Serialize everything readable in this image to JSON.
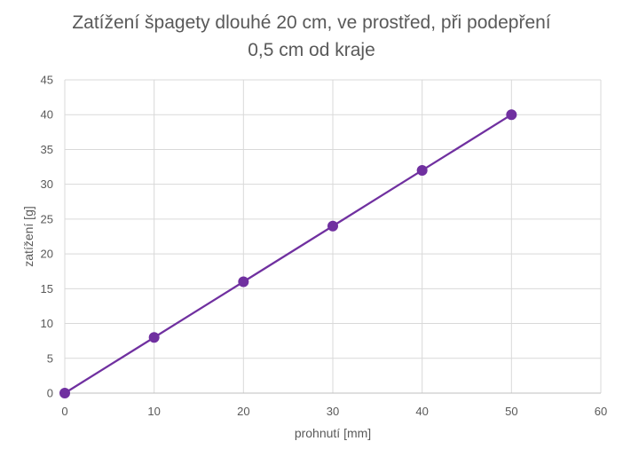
{
  "chart_data": {
    "type": "line",
    "title_lines": [
      "Zatížení špagety dlouhé 20 cm, ve prostřed, při podepření",
      "0,5 cm od kraje"
    ],
    "xlabel": "prohnutí [mm]",
    "ylabel": "zatížení [g]",
    "xlim": [
      0,
      60
    ],
    "ylim": [
      0,
      45
    ],
    "x_ticks": [
      0,
      10,
      20,
      30,
      40,
      50,
      60
    ],
    "y_ticks": [
      0,
      5,
      10,
      15,
      20,
      25,
      30,
      35,
      40,
      45
    ],
    "grid": true,
    "legend": "none",
    "smooth": true,
    "series": [
      {
        "x": [
          0,
          10,
          20,
          30,
          40,
          50
        ],
        "y": [
          0,
          8,
          16,
          24,
          32,
          40
        ],
        "color": "#7030A0"
      }
    ],
    "colors": {
      "grid": "#D9D9D9",
      "axis": "#BFBFBF",
      "text": "#595959"
    }
  }
}
